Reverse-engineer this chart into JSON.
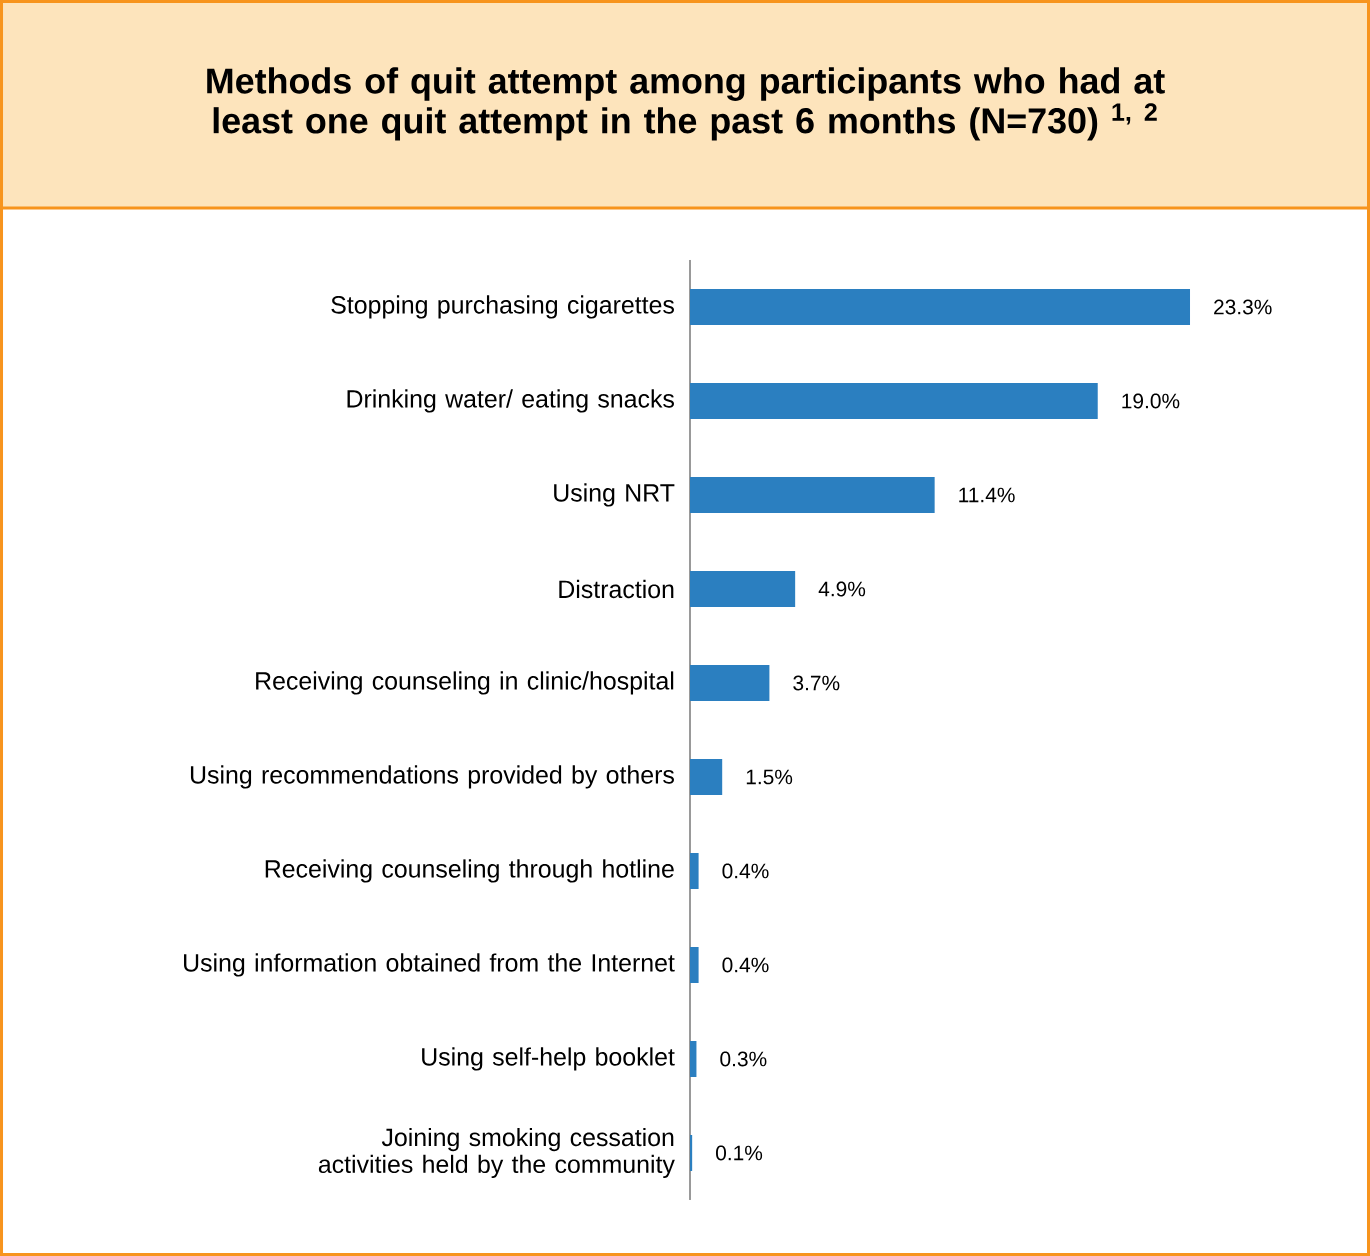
{
  "chart_data": {
    "type": "bar",
    "orientation": "horizontal",
    "title": "Methods of quit attempt among participants who had at least one quit attempt in the past 6 months (N=730) $^{1, 2}$",
    "categories": [
      "Stopping purchasing cigarettes",
      "Drinking water/ eating snacks",
      "Using NRT",
      "Distraction",
      "Receiving counseling in clinic/hospital",
      "Using recommendations provided by others",
      "Receiving counseling through hotline",
      "Using information obtained from the Internet",
      "Using self-help booklet",
      "Joining smoking cessation activities held by the community"
    ],
    "values": [
      23.3,
      19.0,
      11.4,
      4.9,
      3.7,
      1.5,
      0.4,
      0.4,
      0.3,
      0.1
    ],
    "value_labels": [
      "23.3%",
      "19.0%",
      "11.4%",
      "4.9%",
      "3.7%",
      "1.5%",
      "0.4%",
      "0.4%",
      "0.3%",
      "0.1%"
    ],
    "color": "#2b7fc0",
    "tick_labels": "y"
  }
}
